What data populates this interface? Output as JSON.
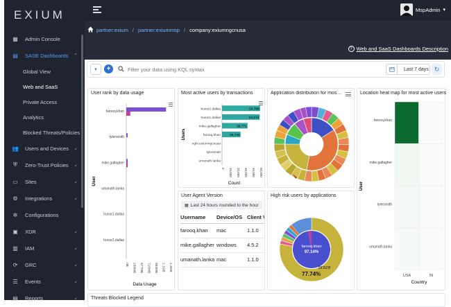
{
  "brand": {
    "logo": "EXIUM"
  },
  "topbar": {
    "user": "MspAdmin"
  },
  "sidebar": {
    "items": [
      {
        "label": "Admin Console",
        "icon": "grid-icon",
        "chev": false
      },
      {
        "label": "SASE Dashboards",
        "icon": "dashboard-icon",
        "chev": true,
        "active": true
      },
      {
        "label": "Users and Devices",
        "icon": "users-icon",
        "chev": true
      },
      {
        "label": "Zero-Trust Policies",
        "icon": "shield-icon",
        "chev": true
      },
      {
        "label": "Sites",
        "icon": "sites-icon",
        "chev": true
      },
      {
        "label": "Integrations",
        "icon": "integrations-icon",
        "chev": true
      },
      {
        "label": "Configurations",
        "icon": "gear-icon",
        "chev": false
      },
      {
        "label": "XDR",
        "icon": "monitor-icon",
        "chev": true
      },
      {
        "label": "IAM",
        "icon": "id-card-icon",
        "chev": true
      },
      {
        "label": "GRC",
        "icon": "refresh-icon",
        "chev": true
      },
      {
        "label": "Events",
        "icon": "events-icon",
        "chev": true
      },
      {
        "label": "Reports",
        "icon": "reports-icon",
        "chev": true
      }
    ],
    "subitems": [
      "Global View",
      "Web and SaaS",
      "Private Access",
      "Analytics",
      "Blocked Threats/Policies"
    ],
    "active_sub": "Web and SaaS"
  },
  "breadcrumb": {
    "items": [
      "partner:exium",
      "partner:exiummsp",
      "company:exiumngcnusa"
    ],
    "sep": "/"
  },
  "description_link": "Web and SaaS Dashboards Description",
  "filter": {
    "placeholder": "Filter your data using KQL syntax",
    "date": "Last 7 days"
  },
  "panels": {
    "user_rank": {
      "title": "User rank by data usage",
      "xlabel": "Data Usage",
      "ylabel": "User",
      "users": [
        "farooq.khan",
        "tylersmith",
        "mike.gallagher",
        "umanath.lanka",
        "hunsr1.dallas",
        "hunsr2.dallas"
      ],
      "ticks": [
        "0B",
        "238MB",
        "477MB",
        "715MB",
        "954MB",
        "1.1GB",
        "1.3GB"
      ]
    },
    "active_users": {
      "title": "Most active users by transactions",
      "xlabel": "Count",
      "ylabel": "Users",
      "users": [
        "hunsr2.dallas",
        "hunsr1.dallas",
        "mike.gallagher",
        "farooq.khan",
        "nghi.exiumngcnusa",
        "tylersmith",
        "umanath.lanka"
      ],
      "values_labels": [
        "54,788",
        "54,270",
        "36,771",
        "26,736",
        "",
        "",
        ""
      ],
      "ticks": [
        "0",
        "10,000",
        "20,000",
        "30,000",
        "40,000",
        "50,000"
      ]
    },
    "app_dist": {
      "title": "Application distribution for most active users"
    },
    "heatmap": {
      "title": "Location heat map for most active users",
      "ylabel": "User",
      "xlabel": "Country",
      "users": [
        "farooq.khan",
        "mike.gallagher",
        "tylersmith",
        "umanath.lanka"
      ],
      "countries": [
        "USA",
        "IN"
      ]
    },
    "user_agent": {
      "title": "User Agent Version",
      "badge": "Last 24 hours rounded to the hour",
      "columns": [
        "Username",
        "Device/OS",
        "Client V"
      ],
      "rows": [
        [
          "farooq.khan",
          "mac",
          "1.1.0"
        ],
        [
          "mike.gallagher",
          "windows",
          "4.5.2"
        ],
        [
          "umanath.lanka",
          "mac",
          "1.1.0"
        ]
      ]
    },
    "high_risk": {
      "title": "High risk users by applications",
      "center_user": "farooq.khan",
      "center_pct": "97.14%",
      "outer_label": "braze",
      "outer_pct": "77.74%"
    },
    "threats": {
      "title": "Threats Blocked Legend"
    }
  },
  "chart_data": [
    {
      "type": "bar",
      "title": "User rank by data usage",
      "orientation": "horizontal",
      "categories": [
        "farooq.khan",
        "tylersmith",
        "mike.gallagher",
        "umanath.lanka",
        "hunsr1.dallas",
        "hunsr2.dallas"
      ],
      "series": [
        {
          "color": "#7b4fd6",
          "values": [
            1300,
            25,
            20,
            0,
            0,
            0
          ]
        },
        {
          "color": "#c43c9a",
          "values": [
            130,
            0,
            15,
            0,
            0,
            0
          ]
        }
      ],
      "xlabel": "Data Usage",
      "ylabel": "User",
      "xunit": "MB",
      "xlim": [
        0,
        1430
      ]
    },
    {
      "type": "bar",
      "title": "Most active users by transactions",
      "orientation": "horizontal",
      "categories": [
        "hunsr2.dallas",
        "hunsr1.dallas",
        "mike.gallagher",
        "farooq.khan",
        "nghi.exiumngcnusa",
        "tylersmith",
        "umanath.lanka"
      ],
      "values": [
        54788,
        54270,
        36771,
        26736,
        0,
        0,
        0
      ],
      "xlabel": "Count",
      "ylabel": "Users",
      "xlim": [
        0,
        55000
      ]
    },
    {
      "type": "pie",
      "title": "Application distribution for most active users",
      "inner": [
        {
          "color": "#3d4fc4",
          "value": 16
        },
        {
          "color": "#e2733a",
          "value": 37
        },
        {
          "color": "#c6b33b",
          "value": 22
        },
        {
          "color": "#2aa6c4",
          "value": 6
        },
        {
          "color": "#58c24b",
          "value": 8
        },
        {
          "color": "#a653c9",
          "value": 6
        },
        {
          "color": "#e24a7a",
          "value": 5
        }
      ]
    },
    {
      "type": "pie",
      "title": "High risk users by applications",
      "inner": [
        {
          "label": "farooq.khan",
          "value": 97.14,
          "color": "#4a4fd0"
        },
        {
          "value": 2.86,
          "color": "#c43c9a"
        }
      ],
      "outer": [
        {
          "label": "braze",
          "value": 77.74,
          "color": "#c6b33b"
        },
        {
          "value": 22.26,
          "color": "#5b8fd9"
        }
      ]
    },
    {
      "type": "heatmap",
      "title": "Location heat map for most active users",
      "y": [
        "farooq.khan",
        "mike.gallagher",
        "tylersmith",
        "umanath.lanka"
      ],
      "x": [
        "USA",
        "IN"
      ],
      "values": [
        [
          1,
          0
        ],
        [
          0.08,
          0
        ],
        [
          0.06,
          0
        ],
        [
          0.05,
          0
        ]
      ]
    }
  ]
}
